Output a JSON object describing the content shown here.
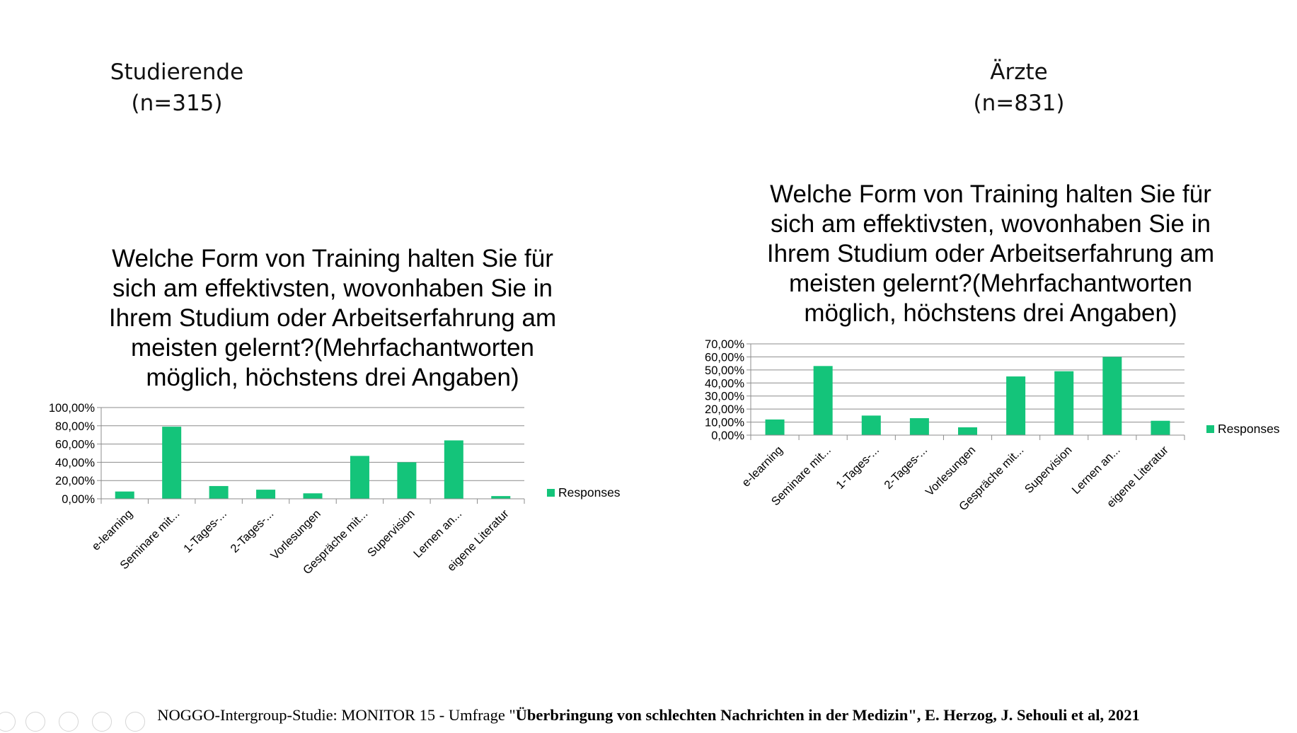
{
  "groups": [
    {
      "name": "Studierende",
      "n": "(n=315)"
    },
    {
      "name": "Ärzte",
      "n": "(n=831)"
    }
  ],
  "chart_titles": [
    [
      "Welche Form von Training halten Sie für",
      "sich am effektivsten, wovonhaben Sie in",
      "Ihrem Studium oder Arbeitserfahrung am",
      "meisten gelernt?(Mehrfachantworten",
      "möglich, höchstens drei Angaben)"
    ],
    [
      "Welche Form von Training halten Sie für",
      "sich am effektivsten, wovonhaben Sie in",
      "Ihrem Studium oder Arbeitserfahrung am",
      "meisten gelernt?(Mehrfachantworten",
      "möglich, höchstens drei Angaben)"
    ]
  ],
  "footer": {
    "normal": "NOGGO-Intergroup-Studie: MONITOR 15 - Umfrage \"",
    "bold": "Überbringung von schlechten Nachrichten in der Medizin\", E. Herzog, J. Sehouli et al, 2021"
  },
  "colors": {
    "bar": "#14c47a",
    "grid": "#8c8c8c",
    "axis": "#8c8c8c"
  },
  "chart_data": [
    {
      "type": "bar",
      "title": "Welche Form von Training halten Sie für sich am effektivsten, wovonhaben Sie in Ihrem Studium oder Arbeitserfahrung am meisten gelernt?(Mehrfachantworten möglich, höchstens drei Angaben)",
      "categories": [
        "e-learning",
        "Seminare mit...",
        "1-Tages-...",
        "2-Tages-...",
        "Vorlesungen",
        "Gespräche mit...",
        "Supervision",
        "Lernen an...",
        "eigene Literatur"
      ],
      "series": [
        {
          "name": "Responses",
          "values": [
            8,
            79,
            14,
            10,
            6,
            47,
            40,
            64,
            3
          ]
        }
      ],
      "ylim": [
        0,
        100
      ],
      "yticks": [
        "0,00%",
        "20,00%",
        "40,00%",
        "60,00%",
        "80,00%",
        "100,00%"
      ],
      "grid": true,
      "legend": "right"
    },
    {
      "type": "bar",
      "title": "Welche Form von Training halten Sie für sich am effektivsten, wovonhaben Sie in Ihrem Studium oder Arbeitserfahrung am meisten gelernt?(Mehrfachantworten möglich, höchstens drei Angaben)",
      "categories": [
        "e-learning",
        "Seminare mit...",
        "1-Tages-...",
        "2-Tages-...",
        "Vorlesungen",
        "Gespräche mit...",
        "Supervision",
        "Lernen an...",
        "eigene Literatur"
      ],
      "series": [
        {
          "name": "Responses",
          "values": [
            12,
            53,
            15,
            13,
            6,
            45,
            49,
            60,
            11
          ]
        }
      ],
      "ylim": [
        0,
        70
      ],
      "yticks": [
        "0,00%",
        "10,00%",
        "20,00%",
        "30,00%",
        "40,00%",
        "50,00%",
        "60,00%",
        "70,00%"
      ],
      "grid": true,
      "legend": "right"
    }
  ]
}
